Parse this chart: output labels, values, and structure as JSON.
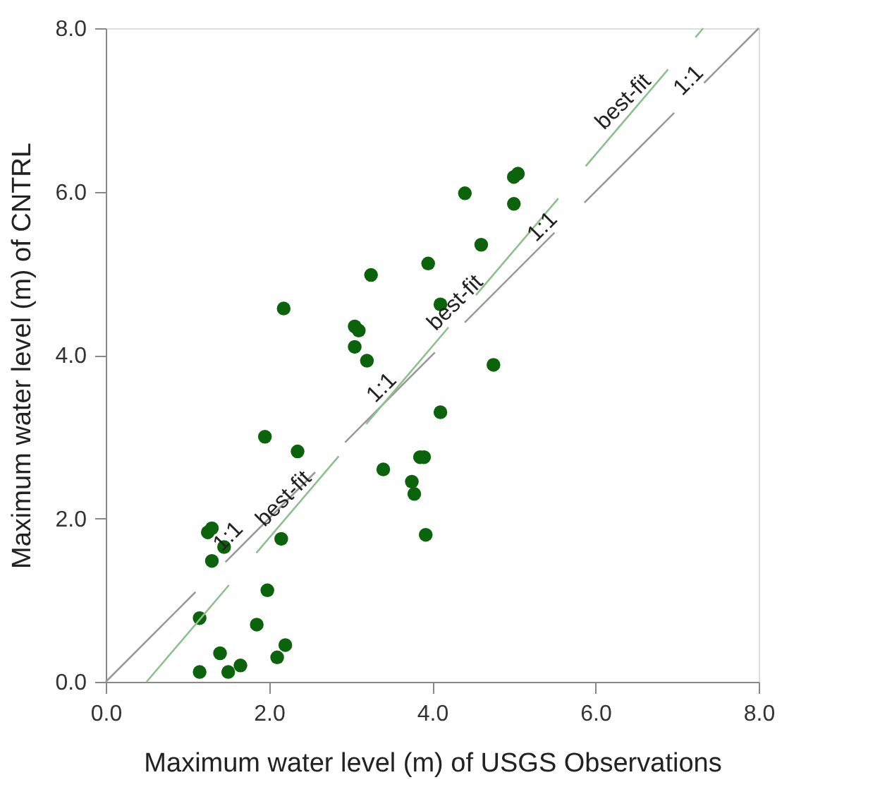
{
  "chart_data": {
    "type": "scatter",
    "xlabel": "Maximum water level (m) of USGS Observations",
    "ylabel": "Maximum water level (m) of CNTRL",
    "xlim": [
      0,
      8
    ],
    "ylim": [
      0,
      8
    ],
    "xticks": [
      {
        "value": 0,
        "label": "0.0"
      },
      {
        "value": 2,
        "label": "2.0"
      },
      {
        "value": 4,
        "label": "4.0"
      },
      {
        "value": 6,
        "label": "6.0"
      },
      {
        "value": 8,
        "label": "8.0"
      }
    ],
    "yticks": [
      {
        "value": 0,
        "label": "0.0"
      },
      {
        "value": 2,
        "label": "2.0"
      },
      {
        "value": 4,
        "label": "4.0"
      },
      {
        "value": 6,
        "label": "6.0"
      },
      {
        "value": 8,
        "label": "8.0"
      }
    ],
    "series": [
      {
        "marker": "circle",
        "color": "#0b640b",
        "x": [
          1.15,
          1.15,
          1.25,
          1.3,
          1.3,
          1.45,
          1.4,
          1.5,
          1.65,
          1.85,
          1.98,
          1.95,
          2.1,
          2.2,
          2.15,
          2.18,
          2.35,
          3.05,
          3.1,
          3.05,
          3.2,
          3.25,
          3.4,
          3.75,
          3.78,
          3.85,
          3.9,
          3.92,
          3.95,
          4.1,
          4.1,
          4.4,
          4.6,
          4.75,
          5.0,
          5.05,
          5.0
        ],
        "values": [
          0.78,
          0.12,
          1.83,
          1.88,
          1.48,
          1.65,
          0.35,
          0.12,
          0.2,
          0.7,
          1.12,
          3.0,
          0.3,
          0.45,
          1.75,
          4.57,
          2.82,
          4.35,
          4.3,
          4.1,
          3.93,
          4.98,
          2.6,
          2.45,
          2.3,
          2.75,
          2.75,
          1.8,
          5.12,
          4.62,
          3.3,
          5.98,
          5.35,
          3.88,
          6.18,
          6.22,
          5.85
        ]
      },
      {
        "type": "line",
        "line_style": "dashed",
        "color": "#999999",
        "x": [
          0,
          8
        ],
        "values": [
          0,
          8
        ]
      },
      {
        "type": "line",
        "line_style": "dashed",
        "color": "#8fbf8f",
        "x": [
          0.5,
          7.32
        ],
        "values": [
          0,
          8
        ]
      }
    ],
    "annotations": [
      {
        "text": "1:1",
        "x": 1.62,
        "y": 1.66
      },
      {
        "text": "best-fit",
        "x": 2.3,
        "y": 2.12
      },
      {
        "text": "1:1",
        "x": 3.5,
        "y": 3.48
      },
      {
        "text": "best-fit",
        "x": 4.4,
        "y": 4.52
      },
      {
        "text": "1:1",
        "x": 5.47,
        "y": 5.45
      },
      {
        "text": "best-fit",
        "x": 6.46,
        "y": 6.98
      },
      {
        "text": "1:1",
        "x": 7.26,
        "y": 7.24
      }
    ]
  }
}
